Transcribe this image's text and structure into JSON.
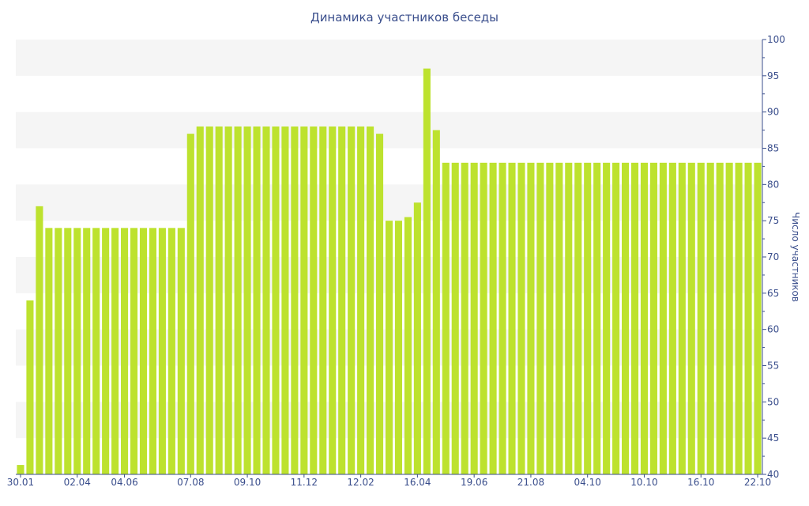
{
  "chart_data": {
    "type": "bar",
    "title": "Динамика участников беседы",
    "xlabel": "",
    "ylabel": "Число участников",
    "ylim": [
      40,
      100
    ],
    "yticks": [
      40,
      45,
      50,
      55,
      60,
      65,
      70,
      75,
      80,
      85,
      90,
      95,
      100
    ],
    "y_axis_side": "right",
    "grid": "alternating horizontal bands",
    "bar_color": "#bde22e",
    "axis_color": "#3a4e8c",
    "band_color": "#f5f5f5",
    "x_tick_labels": [
      {
        "label": "30.01",
        "index": 0
      },
      {
        "label": "02.04",
        "index": 6
      },
      {
        "label": "04.06",
        "index": 11
      },
      {
        "label": "07.08",
        "index": 18
      },
      {
        "label": "09.10",
        "index": 24
      },
      {
        "label": "11.12",
        "index": 30
      },
      {
        "label": "12.02",
        "index": 36
      },
      {
        "label": "16.04",
        "index": 42
      },
      {
        "label": "19.06",
        "index": 48
      },
      {
        "label": "21.08",
        "index": 54
      },
      {
        "label": "04.10",
        "index": 60
      },
      {
        "label": "10.10",
        "index": 66
      },
      {
        "label": "16.10",
        "index": 72
      },
      {
        "label": "22.10",
        "index": 78
      }
    ],
    "values": [
      41.3,
      64,
      77,
      74,
      74,
      74,
      74,
      74,
      74,
      74,
      74,
      74,
      74,
      74,
      74,
      74,
      74,
      74,
      87,
      88,
      88,
      88,
      88,
      88,
      88,
      88,
      88,
      88,
      88,
      88,
      88,
      88,
      88,
      88,
      88,
      88,
      88,
      88,
      87,
      75,
      75,
      75.5,
      77.5,
      96,
      87.5,
      83,
      83,
      83,
      83,
      83,
      83,
      83,
      83,
      83,
      83,
      83,
      83,
      83,
      83,
      83,
      83,
      83,
      83,
      83,
      83,
      83,
      83,
      83,
      83,
      83,
      83,
      83,
      83,
      83,
      83,
      83,
      83,
      83,
      83
    ]
  }
}
